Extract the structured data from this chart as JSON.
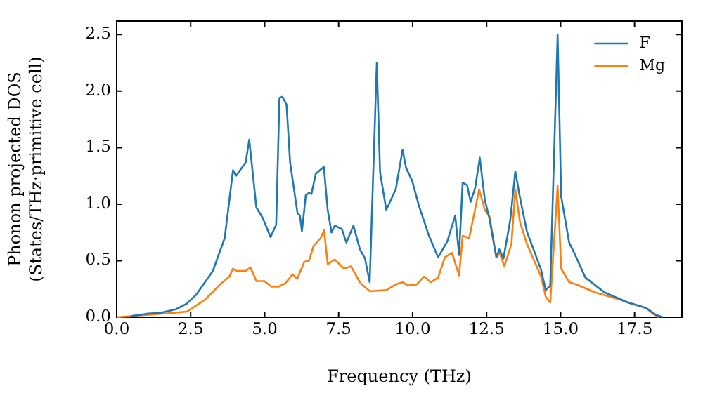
{
  "chart_data": {
    "type": "line",
    "xlabel": "Frequency (THz)",
    "ylabel": "Phonon projected DOS\n(States/THz·primitive cell)",
    "xlim": [
      0,
      19.1
    ],
    "xticks": [
      {
        "value": 0,
        "label": "0.0"
      },
      {
        "value": 2.5,
        "label": "2.5"
      },
      {
        "value": 5,
        "label": "5.0"
      },
      {
        "value": 7.5,
        "label": "7.5"
      },
      {
        "value": 10,
        "label": "10.0"
      },
      {
        "value": 12.5,
        "label": "12.5"
      },
      {
        "value": 15,
        "label": "15.0"
      },
      {
        "value": 17.5,
        "label": "17.5"
      }
    ],
    "ylim": [
      0,
      2.62
    ],
    "yticks": [
      {
        "value": 0,
        "label": "0.0"
      },
      {
        "value": 0.5,
        "label": "0.5"
      },
      {
        "value": 1,
        "label": "1.0"
      },
      {
        "value": 1.5,
        "label": "1.5"
      },
      {
        "value": 2,
        "label": "2.0"
      },
      {
        "value": 2.5,
        "label": "2.5"
      }
    ],
    "grid": false,
    "legend": "top right",
    "marker": "none",
    "line_style": "solid",
    "series": [
      {
        "name": "F",
        "color": "#1f77b4",
        "x": [
          0.5,
          1,
          1.5,
          2,
          2.37,
          2.69,
          3.25,
          3.65,
          3.93,
          4.03,
          4.36,
          4.48,
          4.72,
          4.93,
          5.2,
          5.39,
          5.5,
          5.6,
          5.74,
          5.86,
          6.11,
          6.19,
          6.26,
          6.39,
          6.5,
          6.58,
          6.73,
          7.0,
          7.13,
          7.26,
          7.37,
          7.61,
          7.76,
          8.0,
          8.22,
          8.39,
          8.55,
          8.79,
          8.9,
          9.11,
          9.43,
          9.66,
          9.78,
          9.98,
          10.22,
          10.54,
          10.86,
          11.17,
          11.44,
          11.57,
          11.69,
          11.84,
          11.96,
          12.11,
          12.27,
          12.44,
          12.59,
          12.83,
          12.93,
          13.07,
          13.3,
          13.47,
          13.62,
          13.86,
          14.34,
          14.5,
          14.65,
          14.9,
          15.02,
          15.29,
          15.44,
          15.84,
          16.48,
          17.27,
          17.9,
          18.23,
          18.45
        ],
        "values": [
          0.01,
          0.03,
          0.04,
          0.07,
          0.12,
          0.2,
          0.41,
          0.7,
          1.3,
          1.25,
          1.37,
          1.57,
          0.97,
          0.88,
          0.71,
          0.82,
          1.94,
          1.95,
          1.88,
          1.37,
          0.92,
          0.9,
          0.76,
          1.08,
          1.1,
          1.09,
          1.27,
          1.33,
          0.95,
          0.75,
          0.81,
          0.78,
          0.66,
          0.81,
          0.6,
          0.52,
          0.31,
          2.25,
          1.28,
          0.95,
          1.13,
          1.48,
          1.32,
          1.21,
          0.98,
          0.73,
          0.53,
          0.67,
          0.9,
          0.55,
          1.19,
          1.17,
          1.02,
          1.14,
          1.41,
          1.04,
          0.88,
          0.53,
          0.6,
          0.52,
          0.86,
          1.29,
          1.07,
          0.76,
          0.42,
          0.24,
          0.28,
          2.5,
          1.07,
          0.66,
          0.58,
          0.35,
          0.22,
          0.13,
          0.08,
          0.02,
          0
        ]
      },
      {
        "name": "Mg",
        "color": "#ff7f0e",
        "x": [
          0,
          1,
          2,
          2.38,
          3.01,
          3.49,
          3.81,
          3.93,
          4.04,
          4.36,
          4.52,
          4.72,
          4.99,
          5.23,
          5.47,
          5.7,
          5.94,
          6.1,
          6.34,
          6.5,
          6.65,
          6.89,
          7.01,
          7.13,
          7.37,
          7.68,
          7.92,
          8.24,
          8.56,
          9.11,
          9.43,
          9.67,
          9.83,
          10.14,
          10.38,
          10.61,
          10.86,
          11.09,
          11.33,
          11.57,
          11.69,
          11.91,
          12.25,
          12.44,
          12.6,
          12.83,
          12.94,
          13.1,
          13.34,
          13.47,
          13.63,
          13.86,
          14.34,
          14.5,
          14.65,
          14.9,
          15.02,
          15.29,
          15.53,
          16.16,
          16.95,
          17.9,
          18.12,
          18.32
        ],
        "values": [
          0,
          0.02,
          0.04,
          0.05,
          0.16,
          0.29,
          0.36,
          0.43,
          0.41,
          0.41,
          0.44,
          0.32,
          0.32,
          0.27,
          0.27,
          0.3,
          0.38,
          0.34,
          0.49,
          0.5,
          0.63,
          0.7,
          0.77,
          0.47,
          0.51,
          0.43,
          0.45,
          0.3,
          0.23,
          0.24,
          0.29,
          0.31,
          0.28,
          0.29,
          0.36,
          0.31,
          0.35,
          0.53,
          0.57,
          0.37,
          0.72,
          0.7,
          1.13,
          0.95,
          0.89,
          0.53,
          0.57,
          0.45,
          0.65,
          1.13,
          0.84,
          0.65,
          0.36,
          0.18,
          0.13,
          1.16,
          0.43,
          0.31,
          0.29,
          0.22,
          0.16,
          0.08,
          0.03,
          0
        ]
      }
    ]
  }
}
